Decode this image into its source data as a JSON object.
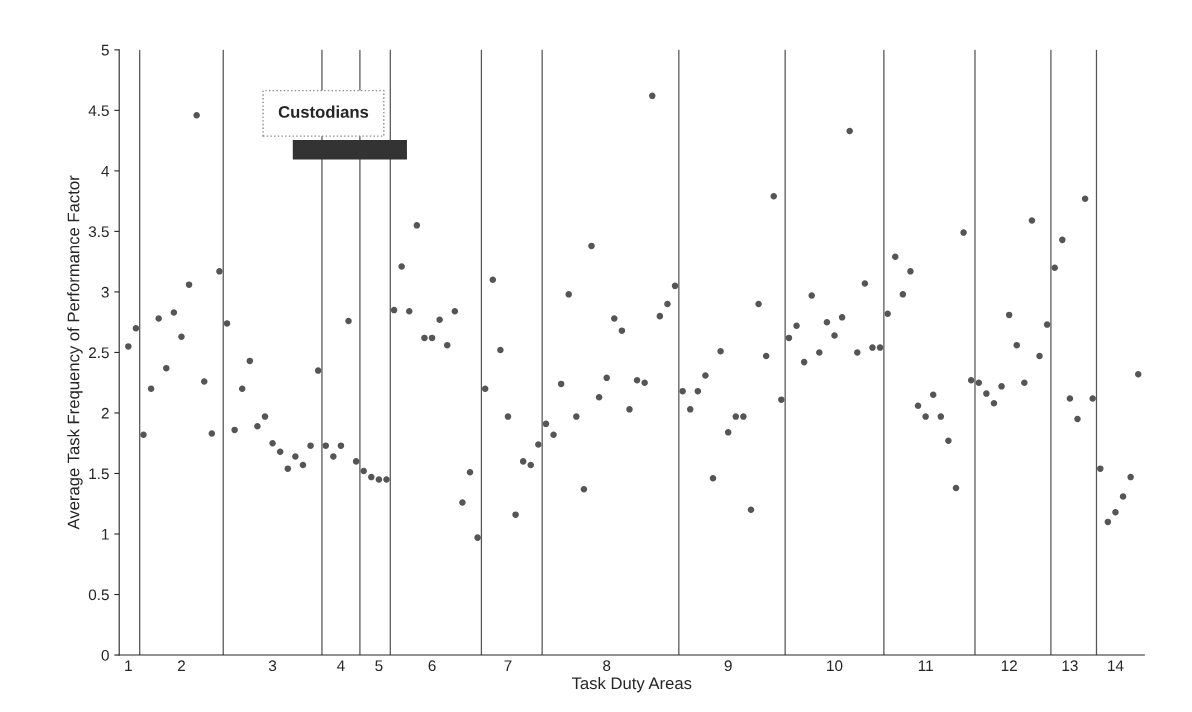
{
  "chart_data": {
    "type": "scatter",
    "xlabel": "Task Duty Areas",
    "ylabel": "Average Task Frequency of Performance Factor",
    "annotations": [
      "Custodians"
    ],
    "categories": [
      "1",
      null,
      null,
      null,
      null,
      null,
      null,
      "2",
      null,
      null,
      null,
      null,
      null,
      null,
      null,
      null,
      null,
      null,
      null,
      "3",
      null,
      null,
      null,
      null,
      null,
      null,
      null,
      null,
      "4",
      null,
      null,
      null,
      null,
      "5",
      null,
      null,
      null,
      null,
      null,
      null,
      "6",
      null,
      null,
      null,
      null,
      null,
      null,
      null,
      null,
      null,
      "7",
      null,
      null,
      null,
      null,
      null,
      null,
      null,
      null,
      null,
      null,
      null,
      null,
      "8",
      null,
      null,
      null,
      null,
      null,
      null,
      null,
      null,
      null,
      null,
      null,
      null,
      null,
      null,
      null,
      "9",
      null,
      null,
      null,
      null,
      null,
      null,
      null,
      null,
      null,
      null,
      null,
      null,
      null,
      "10",
      null,
      null,
      null,
      null,
      null,
      null,
      null,
      null,
      null,
      null,
      null,
      "11",
      null,
      null,
      null,
      null,
      null,
      null,
      null,
      null,
      null,
      null,
      "12",
      null,
      null,
      null,
      null,
      null,
      null,
      null,
      "13",
      null,
      null,
      null,
      null,
      null,
      "14",
      null,
      null,
      null
    ],
    "ylim": [
      0,
      5
    ],
    "yticks": [
      0,
      0.5,
      1,
      1.5,
      2,
      2.5,
      3,
      3.5,
      4,
      4.5,
      5
    ],
    "grid": false,
    "legend": false,
    "marker": "circle",
    "series": [
      {
        "color": "#555555",
        "values": [
          2.55,
          2.7,
          1.82,
          2.2,
          2.78,
          2.37,
          2.83,
          2.63,
          3.06,
          4.46,
          2.26,
          1.83,
          3.17,
          2.74,
          1.86,
          2.2,
          2.43,
          1.89,
          1.97,
          1.75,
          1.68,
          1.54,
          1.64,
          1.57,
          1.73,
          2.35,
          1.73,
          1.64,
          1.73,
          2.76,
          1.6,
          1.52,
          1.47,
          1.45,
          1.45,
          2.85,
          3.21,
          2.84,
          3.55,
          2.62,
          2.62,
          2.77,
          2.56,
          2.84,
          1.26,
          1.51,
          0.97,
          2.2,
          3.1,
          2.52,
          1.97,
          1.16,
          1.6,
          1.57,
          1.74,
          1.91,
          1.82,
          2.24,
          2.98,
          1.97,
          1.37,
          3.38,
          2.13,
          2.29,
          2.78,
          2.68,
          2.03,
          2.27,
          2.25,
          4.62,
          2.8,
          2.9,
          3.05,
          2.18,
          2.03,
          2.18,
          2.31,
          1.46,
          2.51,
          1.84,
          1.97,
          1.97,
          1.2,
          2.9,
          2.47,
          3.79,
          2.11,
          2.62,
          2.72,
          2.42,
          2.97,
          2.5,
          2.75,
          2.64,
          2.79,
          4.33,
          2.5,
          3.07,
          2.54,
          2.54,
          2.82,
          3.29,
          2.98,
          3.17,
          2.06,
          1.97,
          2.15,
          1.97,
          1.77,
          1.38,
          3.49,
          2.27,
          2.25,
          2.16,
          2.08,
          2.22,
          2.81,
          2.56,
          2.25,
          3.59,
          2.47,
          2.73,
          3.2,
          3.43,
          2.12,
          1.95,
          3.77,
          2.12,
          1.54,
          1.1,
          1.18,
          1.31,
          1.47,
          2.32
        ]
      }
    ]
  }
}
